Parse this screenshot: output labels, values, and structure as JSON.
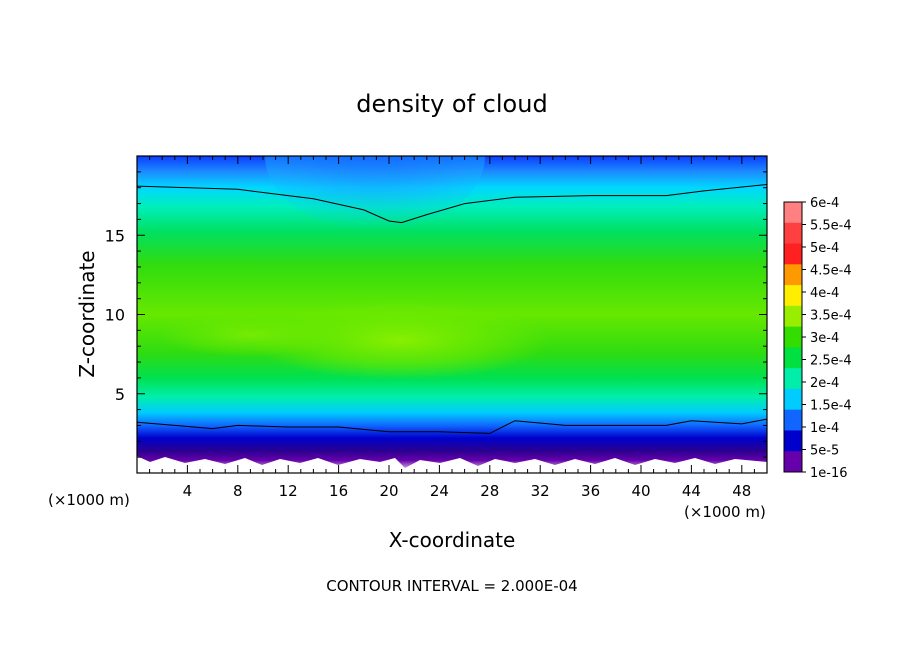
{
  "chart_data": {
    "type": "heatmap",
    "title": "density of cloud",
    "xlabel": "X-coordinate",
    "ylabel": "Z-coordinate",
    "x_unit_left": "(×1000 m)",
    "x_unit_right": "(×1000 m)",
    "xlim": [
      0,
      50
    ],
    "ylim": [
      0,
      20
    ],
    "x_ticks": [
      4,
      8,
      12,
      16,
      20,
      24,
      28,
      32,
      36,
      40,
      44,
      48
    ],
    "y_ticks": [
      5,
      10,
      15
    ],
    "footer": "CONTOUR INTERVAL = 2.000E-04",
    "colorbar": {
      "labels": [
        "6e-4",
        "5.5e-4",
        "5e-4",
        "4.5e-4",
        "4e-4",
        "3.5e-4",
        "3e-4",
        "2.5e-4",
        "2e-4",
        "1.5e-4",
        "1e-4",
        "5e-5",
        "1e-16"
      ],
      "colors": [
        "#ff8080",
        "#ff4040",
        "#ff2020",
        "#ff9900",
        "#ffee00",
        "#99ee00",
        "#33dd00",
        "#00e040",
        "#00eeaa",
        "#00ccff",
        "#1166ff",
        "#0000cc",
        "#6600aa"
      ]
    },
    "contours": [
      {
        "level": "2.000E-04",
        "points": [
          [
            0,
            18.1
          ],
          [
            8,
            17.9
          ],
          [
            14,
            17.3
          ],
          [
            18,
            16.6
          ],
          [
            20,
            15.9
          ],
          [
            21,
            15.8
          ],
          [
            23,
            16.3
          ],
          [
            26,
            17.0
          ],
          [
            30,
            17.4
          ],
          [
            36,
            17.5
          ],
          [
            42,
            17.5
          ],
          [
            45,
            17.8
          ],
          [
            50,
            18.2
          ]
        ]
      },
      {
        "level": "2.000E-04",
        "points": [
          [
            0,
            3.2
          ],
          [
            3,
            3.0
          ],
          [
            6,
            2.8
          ],
          [
            8,
            3.0
          ],
          [
            12,
            2.9
          ],
          [
            16,
            2.9
          ],
          [
            20,
            2.6
          ],
          [
            24,
            2.6
          ],
          [
            28,
            2.5
          ],
          [
            30,
            3.3
          ],
          [
            34,
            3.0
          ],
          [
            38,
            3.0
          ],
          [
            42,
            3.0
          ],
          [
            44,
            3.3
          ],
          [
            48,
            3.1
          ],
          [
            50,
            3.4
          ]
        ]
      }
    ]
  }
}
